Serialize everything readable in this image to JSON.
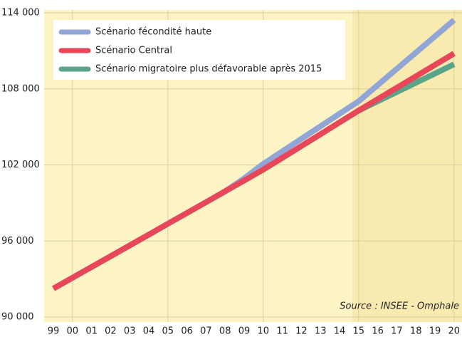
{
  "chart_data": {
    "type": "line",
    "categories": [
      "99",
      "00",
      "01",
      "02",
      "03",
      "04",
      "05",
      "06",
      "07",
      "08",
      "09",
      "10",
      "11",
      "12",
      "13",
      "14",
      "15",
      "16",
      "17",
      "18",
      "19",
      "20"
    ],
    "series": [
      {
        "name": "Scénario fécondité haute",
        "color": "#8fa6d6",
        "values": [
          92250,
          93100,
          93950,
          94800,
          95650,
          96500,
          97360,
          98210,
          99060,
          99920,
          100940,
          102080,
          103070,
          104060,
          105050,
          106040,
          107020,
          108300,
          109580,
          110860,
          112140,
          113430
        ]
      },
      {
        "name": "Scénario Central",
        "color": "#e8475a",
        "values": [
          92250,
          93100,
          93950,
          94800,
          95650,
          96500,
          97360,
          98210,
          99060,
          99920,
          100770,
          101630,
          102560,
          103490,
          104420,
          105360,
          106290,
          107190,
          108090,
          108990,
          109890,
          110790
        ]
      },
      {
        "name": "Scénario migratoire plus défavorable après 2015",
        "color": "#5aa58a",
        "values": [
          null,
          null,
          null,
          null,
          null,
          null,
          null,
          null,
          null,
          null,
          null,
          null,
          null,
          null,
          null,
          null,
          106290,
          107020,
          107750,
          108480,
          109210,
          109940
        ]
      }
    ],
    "ylim": [
      90000,
      114000
    ],
    "yticks": [
      {
        "value": 90000,
        "label": "90 000"
      },
      {
        "value": 96000,
        "label": "96 000"
      },
      {
        "value": 102000,
        "label": "102 000"
      },
      {
        "value": 108000,
        "label": "108 000"
      },
      {
        "value": 114000,
        "label": "114 000"
      }
    ],
    "grid": true,
    "annotation": "Source : INSEE - Omphale"
  }
}
